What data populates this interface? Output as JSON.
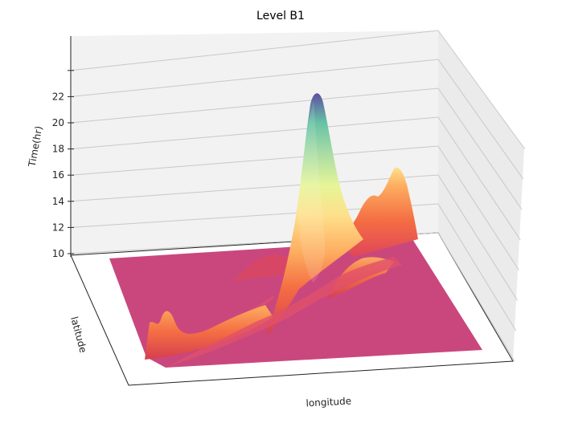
{
  "chart_data": {
    "type": "surface3d",
    "title": "Level B1",
    "xlabel": "longitude",
    "ylabel": "latitude",
    "zlabel": "Time(hr)",
    "zticks": [
      10,
      12,
      14,
      16,
      18,
      20,
      22
    ],
    "zlim": [
      10,
      24
    ],
    "colormap": "Spectral",
    "base_color": "#c8417a",
    "grid": true,
    "peaks": [
      {
        "name": "main",
        "z": 23
      },
      {
        "name": "right",
        "z": 17
      },
      {
        "name": "left",
        "z": 12.5
      }
    ]
  }
}
